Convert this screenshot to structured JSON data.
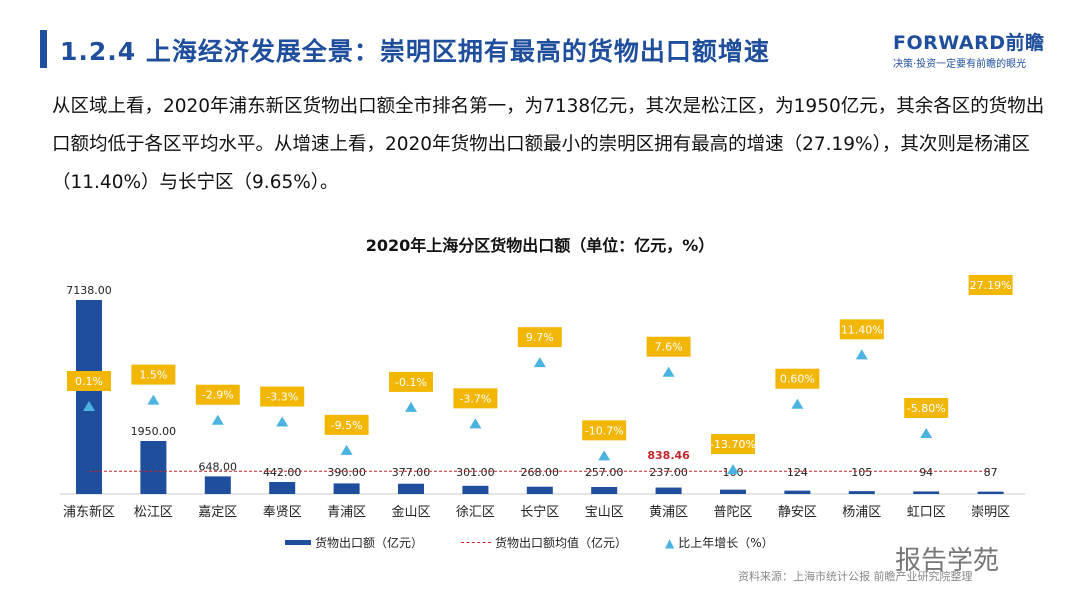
{
  "header": {
    "title": "1.2.4 上海经济发展全景：崇明区拥有最高的货物出口额增速",
    "logo_brand": "FORWARD前瞻",
    "logo_slogan": "决策·投资一定要有前瞻的眼光"
  },
  "paragraph": "从区域上看，2020年浦东新区货物出口额全市排名第一，为7138亿元，其次是松江区，为1950亿元，其余各区的货物出口额均低于各区平均水平。从增速上看，2020年货物出口额最小的崇明区拥有最高的增速（27.19%），其次则是杨浦区（11.40%）与长宁区（9.65%）。",
  "chart_data": {
    "type": "bar",
    "title": "2020年上海分区货物出口额（单位：亿元，%）",
    "categories": [
      "浦东新区",
      "松江区",
      "嘉定区",
      "奉贤区",
      "青浦区",
      "金山区",
      "徐汇区",
      "长宁区",
      "宝山区",
      "黄浦区",
      "普陀区",
      "静安区",
      "杨浦区",
      "虹口区",
      "崇明区"
    ],
    "series": [
      {
        "name": "货物出口额（亿元）",
        "type": "bar",
        "values": [
          7138,
          1950,
          648,
          442,
          390,
          377,
          301,
          268,
          257,
          237,
          160,
          124,
          105,
          94,
          87
        ],
        "labels": [
          "7138.00",
          "1950.00",
          "648.00",
          "442.00",
          "390.00",
          "377.00",
          "301.00",
          "268.00",
          "257.00",
          "237.00",
          "160",
          "124",
          "105",
          "94",
          "87"
        ],
        "color": "#1f4e9c"
      },
      {
        "name": "货物出口额均值（亿元）",
        "type": "line",
        "value": 838.46,
        "label": "838.46",
        "color": "#c0282d"
      },
      {
        "name": "比上年增长（%）",
        "type": "scatter",
        "values": [
          0.1,
          1.5,
          -2.9,
          -3.3,
          -9.5,
          -0.1,
          -3.7,
          9.7,
          -10.7,
          7.6,
          -13.7,
          0.6,
          11.4,
          -5.8,
          27.19
        ],
        "labels": [
          "0.1%",
          "1.5%",
          "-2.9%",
          "-3.3%",
          "-9.5%",
          "-0.1%",
          "-3.7%",
          "9.7%",
          "-10.7%",
          "7.6%",
          "-13.70%",
          "0.60%",
          "11.40%",
          "-5.80%",
          "27.19%"
        ],
        "color": "#4bb3e0",
        "label_bg": "#f2b705"
      }
    ],
    "legend_position": "bottom"
  },
  "source": "资料来源：上海市统计公报 前瞻产业研究院整理",
  "watermark": "报告学苑"
}
